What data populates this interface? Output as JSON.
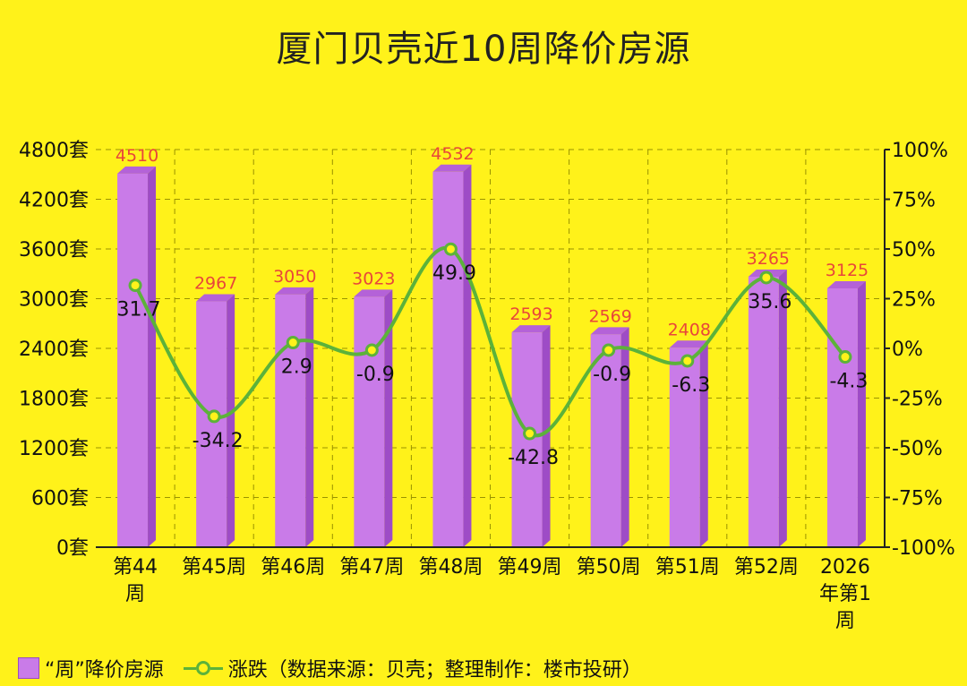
{
  "title": "厦门贝壳近10周降价房源",
  "chart_data": {
    "type": "bar",
    "title": "厦门贝壳近10周降价房源",
    "categories": [
      [
        "第44",
        "周"
      ],
      [
        "第45周"
      ],
      [
        "第46周"
      ],
      [
        "第47周"
      ],
      [
        "第48周"
      ],
      [
        "第49周"
      ],
      [
        "第50周"
      ],
      [
        "第51周"
      ],
      [
        "第52周"
      ],
      [
        "2026",
        "年第1",
        "周"
      ]
    ],
    "series": [
      {
        "name": "“周”降价房源",
        "type": "bar",
        "axis": "left",
        "values": [
          4510,
          2967,
          3050,
          3023,
          4532,
          2593,
          2569,
          2408,
          3265,
          3125
        ],
        "labels": [
          "4510",
          "2967",
          "3050",
          "3023",
          "4532",
          "2593",
          "2569",
          "2408",
          "3265",
          "3125"
        ],
        "color": "#C97BE8"
      },
      {
        "name": "涨跌",
        "type": "line",
        "axis": "right",
        "values": [
          31.7,
          -34.2,
          2.9,
          -0.9,
          49.9,
          -42.8,
          -0.9,
          -6.3,
          35.6,
          -4.3
        ],
        "labels": [
          "31.7",
          "-34.2",
          "2.9",
          "-0.9",
          "49.9",
          "-42.8",
          "-0.9",
          "-6.3",
          "35.6",
          "-4.3"
        ],
        "color": "#5CB23A"
      }
    ],
    "y_left": {
      "ylim": [
        0,
        4800
      ],
      "ticks": [
        0,
        600,
        1200,
        1800,
        2400,
        3000,
        3600,
        4200,
        4800
      ],
      "tick_labels": [
        "0套",
        "600套",
        "1200套",
        "1800套",
        "2400套",
        "3000套",
        "3600套",
        "4200套",
        "4800套"
      ]
    },
    "y_right": {
      "ylim": [
        -100,
        100
      ],
      "ticks": [
        -100,
        -75,
        -50,
        -25,
        0,
        25,
        50,
        75,
        100
      ],
      "tick_labels": [
        "-100%",
        "-75%",
        "-50%",
        "-25%",
        "0%",
        "25%",
        "50%",
        "75%",
        "100%"
      ]
    },
    "grid": true,
    "legend_position": "bottom"
  },
  "legend": {
    "bar_label": "“周”降价房源",
    "line_label": "涨跌（数据来源：贝壳；整理制作：楼市投研）"
  },
  "colors": {
    "background": "#FFF21A",
    "bar": "#C97BE8",
    "line": "#5CB23A",
    "bar_label": "#E8463A",
    "grid": "#9a9200"
  }
}
